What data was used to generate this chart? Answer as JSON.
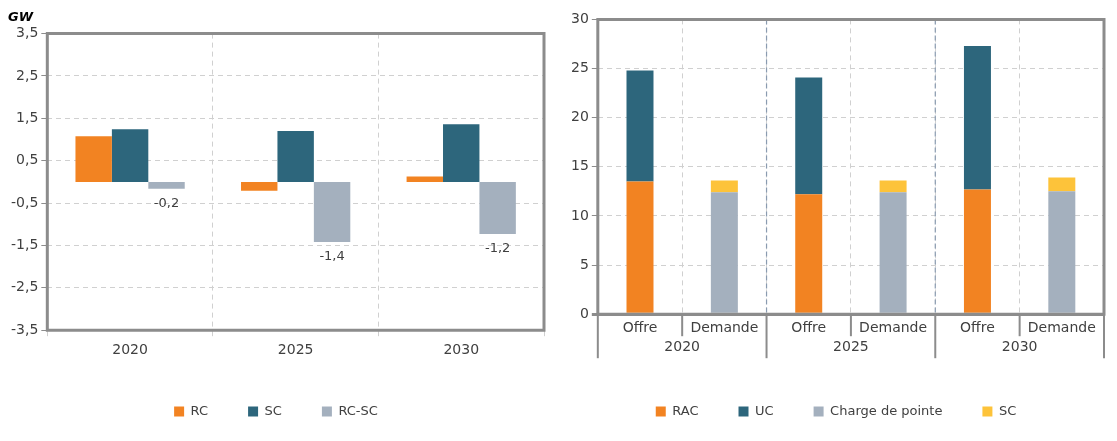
{
  "chart_data": [
    {
      "type": "bar",
      "title": "GW",
      "categories": [
        "2020",
        "2025",
        "2030"
      ],
      "series": [
        {
          "name": "RC",
          "color": "#f28322",
          "values": [
            1.08,
            -0.21,
            0.13
          ]
        },
        {
          "name": "SC",
          "color": "#2d667c",
          "values": [
            1.24,
            1.2,
            1.36
          ]
        },
        {
          "name": "RC-SC",
          "color": "#a4b0be",
          "values": [
            -0.16,
            -1.42,
            -1.23
          ],
          "value_labels": [
            "-0,2",
            "-1,4",
            "-1,2"
          ]
        }
      ],
      "ylim": [
        -3.5,
        3.5
      ],
      "yticks": [
        {
          "value": -3.5,
          "label": "-3,5"
        },
        {
          "value": -2.5,
          "label": "-2,5"
        },
        {
          "value": -1.5,
          "label": "-1,5"
        },
        {
          "value": -0.5,
          "label": "-0,5"
        },
        {
          "value": 0.5,
          "label": "0,5"
        },
        {
          "value": 1.5,
          "label": "1,5"
        },
        {
          "value": 2.5,
          "label": "2,5"
        },
        {
          "value": 3.5,
          "label": "3,5"
        }
      ],
      "grid": true,
      "legend": "bottom"
    },
    {
      "type": "bar",
      "stacked": true,
      "categories": [
        "Offre",
        "Demande",
        "Offre",
        "Demande",
        "Offre",
        "Demande"
      ],
      "annotations": [
        "2020",
        "2025",
        "2030"
      ],
      "series": [
        {
          "name": "RAC",
          "color": "#f28322",
          "values": [
            13.5,
            null,
            12.2,
            null,
            12.7,
            null
          ]
        },
        {
          "name": "UC",
          "color": "#2d667c",
          "values": [
            11.3,
            null,
            11.9,
            null,
            14.6,
            null
          ]
        },
        {
          "name": "Charge de pointe",
          "color": "#a4b0be",
          "values": [
            null,
            12.4,
            null,
            12.4,
            null,
            12.5
          ]
        },
        {
          "name": "SC",
          "color": "#fdc33a",
          "values": [
            null,
            1.2,
            null,
            1.2,
            null,
            1.4
          ]
        }
      ],
      "ylim": [
        0,
        30
      ],
      "yticks": [
        0,
        5,
        10,
        15,
        20,
        25,
        30
      ],
      "grid": true,
      "legend": "bottom"
    }
  ]
}
